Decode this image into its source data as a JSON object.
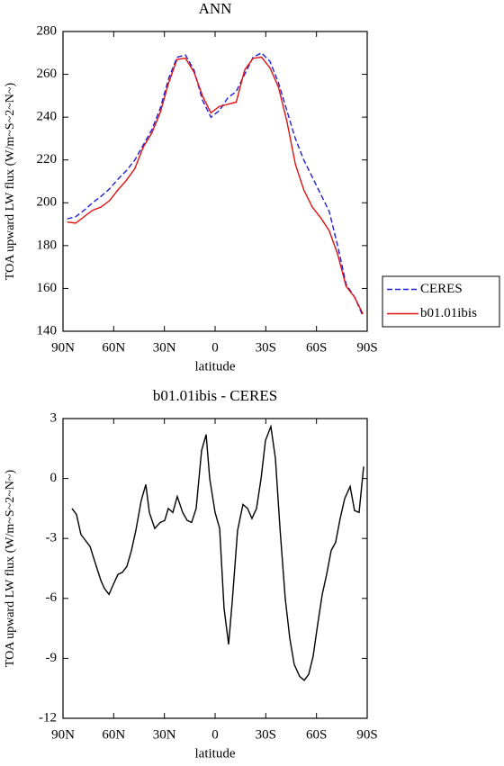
{
  "chart_data": [
    {
      "type": "line",
      "title": "ANN",
      "x_label": "latitude",
      "y_label": "TOA upward LW flux (W/m~S~2~N~)",
      "x": [
        87.5,
        82.5,
        77.5,
        72.5,
        67.5,
        62.5,
        57.5,
        52.5,
        47.5,
        42.5,
        37.5,
        32.5,
        27.5,
        22.5,
        17.5,
        12.5,
        7.5,
        2.5,
        -2.5,
        -7.5,
        -12.5,
        -17.5,
        -22.5,
        -27.5,
        -32.5,
        -37.5,
        -42.5,
        -47.5,
        -52.5,
        -57.5,
        -62.5,
        -67.5,
        -72.5,
        -77.5,
        -82.5,
        -87.5
      ],
      "series": [
        {
          "name": "CERES",
          "color": "#1f1fd6",
          "linestyle": "dashed",
          "values": [
            192.5,
            193.5,
            196.5,
            200,
            203,
            206.5,
            211,
            215,
            220,
            227,
            234,
            244,
            258,
            268,
            269,
            262,
            248,
            240,
            243,
            249,
            252,
            260,
            268,
            270,
            266,
            256,
            243,
            230,
            220,
            212,
            204,
            196,
            180,
            162,
            156,
            147
          ]
        },
        {
          "name": "b01.01ibis",
          "color": "#e01010",
          "linestyle": "solid",
          "values": [
            191,
            190.5,
            193.5,
            196.5,
            198,
            201,
            206,
            210.5,
            216,
            226,
            232.5,
            242,
            256,
            267,
            267.5,
            261,
            250,
            242,
            245,
            246,
            247,
            262,
            267.5,
            268,
            263,
            254,
            238,
            218,
            206,
            198,
            193,
            187,
            176,
            161,
            156,
            148
          ]
        }
      ],
      "xlim": [
        90,
        -90
      ],
      "xticks": [
        {
          "value": 90,
          "label": "90N"
        },
        {
          "value": 60,
          "label": "60N"
        },
        {
          "value": 30,
          "label": "30N"
        },
        0,
        {
          "value": -30,
          "label": "30S"
        },
        {
          "value": -60,
          "label": "60S"
        },
        {
          "value": -90,
          "label": "90S"
        }
      ],
      "ylim": [
        140,
        280
      ],
      "yticks": [
        140,
        160,
        180,
        200,
        220,
        240,
        260,
        280
      ],
      "legend": "right"
    },
    {
      "type": "line",
      "title": "b01.01ibis - CERES",
      "x_label": "latitude",
      "y_label": "TOA upward LW flux (W/m~S~2~N~)",
      "x": [
        84.7,
        82,
        79.4,
        74,
        71.4,
        67.6,
        65.5,
        62.8,
        60.2,
        57.5,
        54.9,
        52.2,
        49.5,
        46.9,
        43.7,
        41,
        38.9,
        35.7,
        32.5,
        29.8,
        27.7,
        25,
        22.4,
        19.2,
        16.5,
        13.9,
        11.2,
        8,
        5.3,
        3.2,
        0,
        -2.7,
        -5.3,
        -8,
        -10.1,
        -13.3,
        -16.5,
        -19.2,
        -21.8,
        -24.5,
        -27.2,
        -29.8,
        -33,
        -35.7,
        -38.4,
        -41.5,
        -44.2,
        -46.8,
        -50,
        -52.7,
        -55.4,
        -58,
        -60.7,
        -63.4,
        -66,
        -68.7,
        -71.3,
        -74,
        -76.7,
        -79.9,
        -82.5,
        -85.2,
        -87.9
      ],
      "series": [
        {
          "name": "b01.01ibis - CERES",
          "color": "#000000",
          "linestyle": "solid",
          "values": [
            -1.5,
            -1.8,
            -2.8,
            -3.4,
            -4.1,
            -5.1,
            -5.5,
            -5.8,
            -5.3,
            -4.8,
            -4.7,
            -4.4,
            -3.6,
            -2.6,
            -1.1,
            -0.3,
            -1.7,
            -2.5,
            -2.2,
            -2.1,
            -1.5,
            -1.7,
            -0.9,
            -1.7,
            -2.1,
            -2.2,
            -1.5,
            1.4,
            2.2,
            0,
            -1.7,
            -2.5,
            -6.5,
            -8.3,
            -6.2,
            -2.6,
            -1.3,
            -1.5,
            -2,
            -1.5,
            0,
            1.9,
            2.6,
            1,
            -2.5,
            -6,
            -8,
            -9.3,
            -9.9,
            -10.1,
            -9.8,
            -8.9,
            -7.3,
            -5.8,
            -4.8,
            -3.6,
            -3.2,
            -2,
            -1,
            -0.4,
            -1.6,
            -1.7,
            0.6
          ]
        }
      ],
      "xlim": [
        90,
        -90
      ],
      "xticks": [
        {
          "value": 90,
          "label": "90N"
        },
        {
          "value": 60,
          "label": "60N"
        },
        {
          "value": 30,
          "label": "30N"
        },
        0,
        {
          "value": -30,
          "label": "30S"
        },
        {
          "value": -60,
          "label": "60S"
        },
        {
          "value": -90,
          "label": "90S"
        }
      ],
      "ylim": [
        -12,
        3
      ],
      "yticks": [
        -12,
        -9,
        -6,
        -3,
        0,
        3
      ]
    }
  ]
}
